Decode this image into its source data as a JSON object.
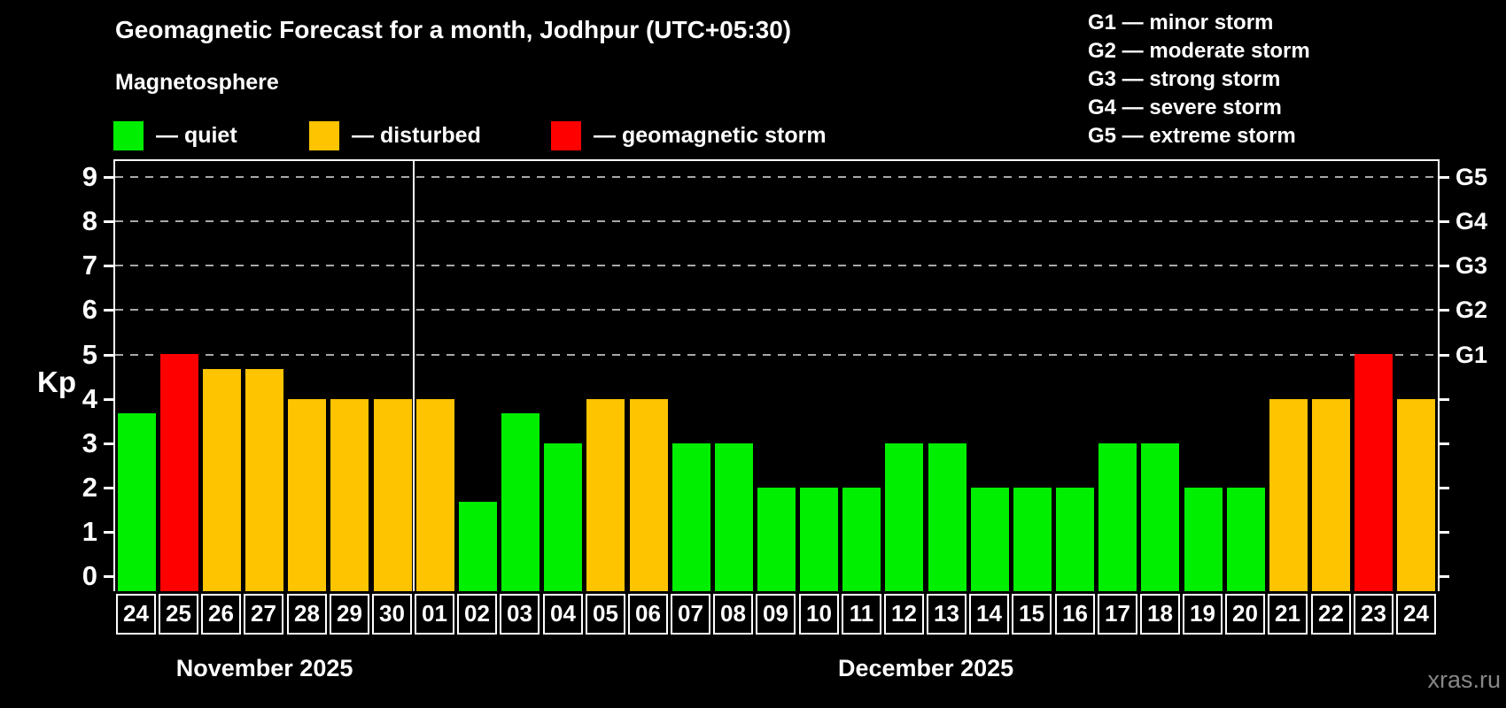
{
  "header": {
    "title": "Geomagnetic Forecast for a month, Jodhpur (UTC+05:30)",
    "subtitle": "Magnetosphere"
  },
  "legend": {
    "items": [
      {
        "key": "quiet",
        "label": "— quiet",
        "color": "#00ee00"
      },
      {
        "key": "disturbed",
        "label": "— disturbed",
        "color": "#ffc400"
      },
      {
        "key": "storm",
        "label": "— geomagnetic storm",
        "color": "#ff0000"
      }
    ]
  },
  "g_scale_legend": {
    "items": [
      {
        "text": "G1 — minor storm"
      },
      {
        "text": "G2 — moderate storm"
      },
      {
        "text": "G3 — strong storm"
      },
      {
        "text": "G4 — severe storm"
      },
      {
        "text": "G5 — extreme storm"
      }
    ]
  },
  "chart_data": {
    "type": "bar",
    "ylabel": "Kp",
    "ylim": [
      0,
      9.6
    ],
    "yticks": [
      0,
      1,
      2,
      3,
      4,
      5,
      6,
      7,
      8,
      9
    ],
    "gridlines": [
      5,
      6,
      7,
      8,
      9
    ],
    "right_axis_labels": [
      {
        "kp": 5,
        "label": "G1"
      },
      {
        "kp": 6,
        "label": "G2"
      },
      {
        "kp": 7,
        "label": "G3"
      },
      {
        "kp": 8,
        "label": "G4"
      },
      {
        "kp": 9,
        "label": "G5"
      }
    ],
    "categories": [
      "24",
      "25",
      "26",
      "27",
      "28",
      "29",
      "30",
      "01",
      "02",
      "03",
      "04",
      "05",
      "06",
      "07",
      "08",
      "09",
      "10",
      "11",
      "12",
      "13",
      "14",
      "15",
      "16",
      "17",
      "18",
      "19",
      "20",
      "21",
      "22",
      "23",
      "24"
    ],
    "values": [
      3.67,
      5,
      4.67,
      4.67,
      4,
      4,
      4,
      4,
      1.67,
      3.67,
      3,
      4,
      4,
      3,
      3,
      2,
      2,
      2,
      3,
      3,
      2,
      2,
      2,
      3,
      3,
      2,
      2,
      4,
      4,
      5,
      4
    ],
    "statuses": [
      "quiet",
      "storm",
      "disturbed",
      "disturbed",
      "disturbed",
      "disturbed",
      "disturbed",
      "disturbed",
      "quiet",
      "quiet",
      "quiet",
      "disturbed",
      "disturbed",
      "quiet",
      "quiet",
      "quiet",
      "quiet",
      "quiet",
      "quiet",
      "quiet",
      "quiet",
      "quiet",
      "quiet",
      "quiet",
      "quiet",
      "quiet",
      "quiet",
      "disturbed",
      "disturbed",
      "storm",
      "disturbed"
    ],
    "months": [
      {
        "label": "November 2025",
        "days": 7
      },
      {
        "label": "December 2025",
        "days": 24
      }
    ],
    "separator_after_index": 6
  },
  "watermark": "xras.ru"
}
